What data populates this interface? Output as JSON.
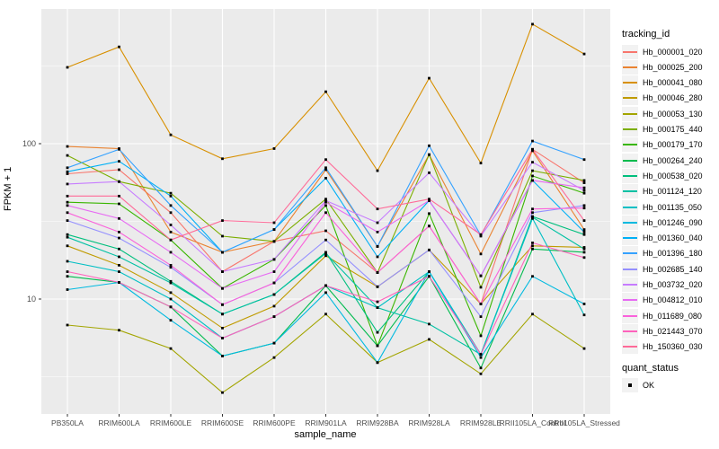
{
  "chart_data": {
    "type": "line",
    "title": "",
    "xlabel": "sample_name",
    "ylabel": "FPKM + 1",
    "y_scale": "log10",
    "y_ticks": [
      10,
      100
    ],
    "y_minor_gridlines": [
      3.162,
      31.62,
      316.2
    ],
    "ylim": [
      1.82,
      736
    ],
    "grid": true,
    "panel_bg": "#EBEBEB",
    "grid_color": "#FFFFFF",
    "marker": "black-square",
    "marker_color": "#000000",
    "legend_position": "right",
    "legend_title": "tracking_id",
    "categories": [
      "PB350LA",
      "RRIM600LA",
      "RRIM600LE",
      "RRIM600SE",
      "RRIM600PE",
      "RRIM901LA",
      "RRIM928BA",
      "RRIM928LA",
      "RRIM928LE",
      "RRII105LA_Control",
      "RRII105LA_Stressed"
    ],
    "series": [
      {
        "name": "Hb_000001_020",
        "color": "#F8766D",
        "values": [
          64,
          68,
          36,
          15,
          23.5,
          27.5,
          14.8,
          29.5,
          9.3,
          92,
          56
        ]
      },
      {
        "name": "Hb_000025_200",
        "color": "#EA8331",
        "values": [
          96,
          93,
          27,
          20,
          23.5,
          68,
          21.8,
          85,
          19.5,
          90,
          28
        ]
      },
      {
        "name": "Hb_000041_080",
        "color": "#D89000",
        "values": [
          310,
          420,
          114,
          80,
          93,
          216,
          67,
          264,
          75,
          588,
          378
        ]
      },
      {
        "name": "Hb_000046_280",
        "color": "#C09B00",
        "values": [
          22,
          16.5,
          11,
          6.5,
          9,
          19,
          12,
          20.7,
          9.3,
          22,
          21.5
        ]
      },
      {
        "name": "Hb_000053_130",
        "color": "#A3A500",
        "values": [
          6.8,
          6.3,
          4.8,
          2.5,
          4.2,
          8,
          3.9,
          5.5,
          3.3,
          8,
          4.8
        ]
      },
      {
        "name": "Hb_000175_440",
        "color": "#7CAE00",
        "values": [
          84,
          57,
          48,
          25.4,
          23.5,
          44,
          14.8,
          85,
          11.9,
          67,
          58
        ]
      },
      {
        "name": "Hb_000179_170",
        "color": "#39B600",
        "values": [
          42,
          41,
          24,
          11.7,
          18,
          40,
          5,
          35.5,
          5.8,
          62,
          48
        ]
      },
      {
        "name": "Hb_000264_240",
        "color": "#00BB4E",
        "values": [
          14,
          12.8,
          8.9,
          4.3,
          5.2,
          12.2,
          5,
          14,
          3.6,
          21,
          20
        ]
      },
      {
        "name": "Hb_000538_020",
        "color": "#00BF7D",
        "values": [
          26,
          21,
          13,
          8,
          10.7,
          20,
          6.1,
          15,
          4.4,
          34,
          26
        ]
      },
      {
        "name": "Hb_001124_120",
        "color": "#00C1A3",
        "values": [
          25,
          18.7,
          12.7,
          8,
          10.7,
          19.7,
          8.8,
          6.9,
          4.4,
          33.6,
          21
        ]
      },
      {
        "name": "Hb_001135_050",
        "color": "#00BFC4",
        "values": [
          17.5,
          15,
          10,
          5.6,
          7.7,
          12.2,
          8.8,
          15,
          4.4,
          33,
          7.9
        ]
      },
      {
        "name": "Hb_001246_090",
        "color": "#00BAE0",
        "values": [
          11.5,
          12.8,
          7.3,
          4.3,
          5.2,
          11,
          3.9,
          15,
          4.2,
          14,
          9.3
        ]
      },
      {
        "name": "Hb_001360_040",
        "color": "#00B0F6",
        "values": [
          66,
          77,
          46,
          20,
          28,
          60,
          18.7,
          43,
          14.1,
          58,
          27
        ]
      },
      {
        "name": "Hb_001396_180",
        "color": "#35A2FF",
        "values": [
          70,
          92,
          40,
          20,
          28,
          70,
          21.8,
          97,
          25.7,
          104,
          79
        ]
      },
      {
        "name": "Hb_002685_140",
        "color": "#9590FF",
        "values": [
          32,
          24.7,
          16,
          9.2,
          12.7,
          24,
          12,
          20.7,
          7.7,
          36,
          40
        ]
      },
      {
        "name": "Hb_003732_020",
        "color": "#C77CFF",
        "values": [
          55,
          57,
          30,
          15,
          18,
          43,
          31,
          65,
          25.4,
          76,
          50
        ]
      },
      {
        "name": "Hb_004812_010",
        "color": "#E76BF3",
        "values": [
          40,
          33,
          20,
          11.7,
          15,
          42,
          27,
          43,
          14.1,
          58,
          52
        ]
      },
      {
        "name": "Hb_011689_080",
        "color": "#FA62DB",
        "values": [
          36,
          27,
          16.5,
          9.2,
          12.7,
          36,
          14.8,
          29.5,
          9.3,
          38,
          38.5
        ]
      },
      {
        "name": "Hb_021443_070",
        "color": "#FF62BC",
        "values": [
          15,
          12.8,
          8.9,
          5.6,
          7.7,
          12.2,
          9.6,
          14,
          4.4,
          23,
          18.5
        ]
      },
      {
        "name": "Hb_150360_030",
        "color": "#FF6A98",
        "values": [
          46,
          46,
          24,
          32,
          31,
          79,
          38,
          44,
          26,
          92,
          32
        ]
      }
    ],
    "quant_status": {
      "title": "quant_status",
      "items": [
        {
          "label": "OK",
          "marker": "black-square"
        }
      ]
    }
  }
}
